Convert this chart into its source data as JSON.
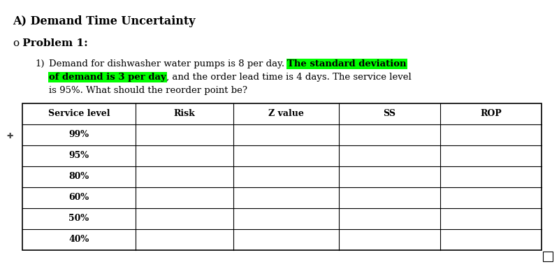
{
  "title": "A) Demand Time Uncertainty",
  "problem_label_bullet": "o",
  "problem_label_text": " Problem 1:",
  "problem_number": "1)",
  "text_normal_1": "Demand for dishwasher water pumps is 8 per day. ",
  "text_highlight_1": "The standard deviation",
  "text_highlight_2": "of demand is 3 per day",
  "text_normal_2": ", and the order lead time is 4 days. The service level",
  "text_normal_3": "is 95%. What should the reorder point be?",
  "highlight_color": "#00FF00",
  "table_headers": [
    "Service level",
    "Risk",
    "Z value",
    "SS",
    "ROP"
  ],
  "table_rows": [
    "99%",
    "95%",
    "80%",
    "60%",
    "50%",
    "40%"
  ],
  "bg_color": "#ffffff",
  "text_color": "#000000",
  "font_size_title": 11.5,
  "font_size_body": 9.5,
  "font_size_problem": 11,
  "font_size_table": 9
}
